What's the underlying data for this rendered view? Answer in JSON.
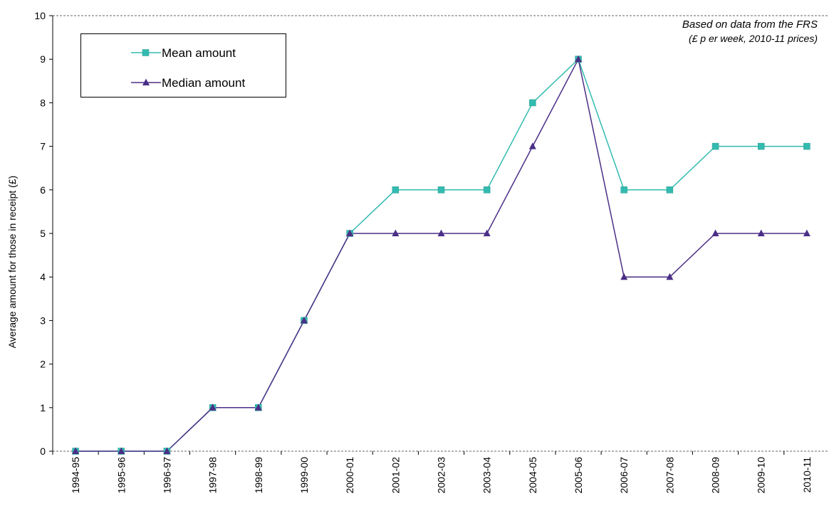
{
  "chart_data": {
    "type": "line",
    "categories": [
      "1994-95",
      "1995-96",
      "1996-97",
      "1997-98",
      "1998-99",
      "1999-00",
      "2000-01",
      "2001-02",
      "2002-03",
      "2003-04",
      "2004-05",
      "2005-06",
      "2006-07",
      "2007-08",
      "2008-09",
      "2009-10",
      "2010-11"
    ],
    "series": [
      {
        "name": "Mean amount",
        "color": "#33bbb0",
        "marker": "square",
        "values": [
          0,
          0,
          0,
          1,
          1,
          3,
          5,
          6,
          6,
          6,
          8,
          9,
          6,
          6,
          7,
          7,
          7
        ]
      },
      {
        "name": "Median amount",
        "color": "#4b2f86",
        "marker": "triangle",
        "values": [
          0,
          0,
          0,
          1,
          1,
          3,
          5,
          5,
          5,
          5,
          7,
          9,
          4,
          4,
          5,
          5,
          5
        ]
      }
    ],
    "ylabel": "Average amount for those in receipt (£)",
    "ylim": [
      0,
      10
    ],
    "yticks": [
      0,
      1,
      2,
      3,
      4,
      5,
      6,
      7,
      8,
      9,
      10
    ],
    "annotations": [
      "Based on data from the FRS",
      "(£ p er week, 2010-11 prices)"
    ],
    "legend_position": "top-left",
    "grid": false
  }
}
